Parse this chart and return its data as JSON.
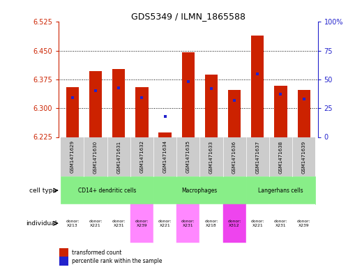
{
  "title": "GDS5349 / ILMN_1865588",
  "samples": [
    "GSM1471629",
    "GSM1471630",
    "GSM1471631",
    "GSM1471632",
    "GSM1471634",
    "GSM1471635",
    "GSM1471633",
    "GSM1471636",
    "GSM1471637",
    "GSM1471638",
    "GSM1471639"
  ],
  "bar_values": [
    6.355,
    6.397,
    6.402,
    6.355,
    6.237,
    6.445,
    6.387,
    6.348,
    6.49,
    6.358,
    6.348
  ],
  "percentile_values": [
    34,
    40,
    43,
    34,
    18,
    48,
    42,
    32,
    55,
    37,
    33
  ],
  "ymin": 6.225,
  "ymax": 6.525,
  "yticks": [
    6.225,
    6.3,
    6.375,
    6.45,
    6.525
  ],
  "right_yticks": [
    0,
    25,
    50,
    75,
    100
  ],
  "bar_color": "#cc2200",
  "dot_color": "#2222cc",
  "bar_width": 0.55,
  "cell_type_ranges": [
    [
      0,
      3,
      "CD14+ dendritic cells"
    ],
    [
      4,
      7,
      "Macrophages"
    ],
    [
      8,
      10,
      "Langerhans cells"
    ]
  ],
  "cell_type_color": "#88ee88",
  "ind_labels": [
    "donor:\nX213",
    "donor:\nX221",
    "donor:\nX231",
    "donor:\nX239",
    "donor:\nX221",
    "donor:\nX231",
    "donor:\nX218",
    "donor:\nX312",
    "donor:\nX221",
    "donor:\nX231",
    "donor:\nX239"
  ],
  "ind_colors": [
    "#ffffff",
    "#ffffff",
    "#ffffff",
    "#ff88ff",
    "#ffffff",
    "#ff88ff",
    "#ffffff",
    "#ee44ee",
    "#ffffff",
    "#ffffff",
    "#ffffff"
  ],
  "grid_dotted_vals": [
    6.3,
    6.375,
    6.45
  ],
  "tick_color_left": "#cc2200",
  "tick_color_right": "#2222cc",
  "sample_bg_color": "#cccccc",
  "legend_red_label": "transformed count",
  "legend_blue_label": "percentile rank within the sample",
  "cell_type_left_label": "cell type",
  "individual_left_label": "individual"
}
